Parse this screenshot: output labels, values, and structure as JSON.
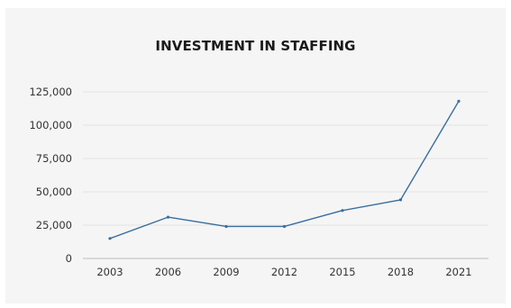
{
  "chart_data": {
    "type": "line",
    "title": "INVESTMENT IN STAFFING",
    "xlabel": "",
    "ylabel": "",
    "x": [
      "2003",
      "2006",
      "2009",
      "2012",
      "2015",
      "2018",
      "2021"
    ],
    "series": [
      {
        "values": [
          15000,
          31000,
          24000,
          24000,
          36000,
          44000,
          118000
        ]
      }
    ],
    "ylim": [
      0,
      125000
    ],
    "yticks": [
      0,
      25000,
      50000,
      75000,
      100000,
      125000
    ],
    "ytick_labels": [
      "0",
      "25,000",
      "50,000",
      "75,000",
      "100,000",
      "125,000"
    ],
    "grid": true,
    "legend": "none",
    "colors": {
      "line": "#3a6e9e",
      "grid": "#e2e2e2",
      "axis": "#bdbdbd",
      "background": "#f5f5f5"
    }
  }
}
